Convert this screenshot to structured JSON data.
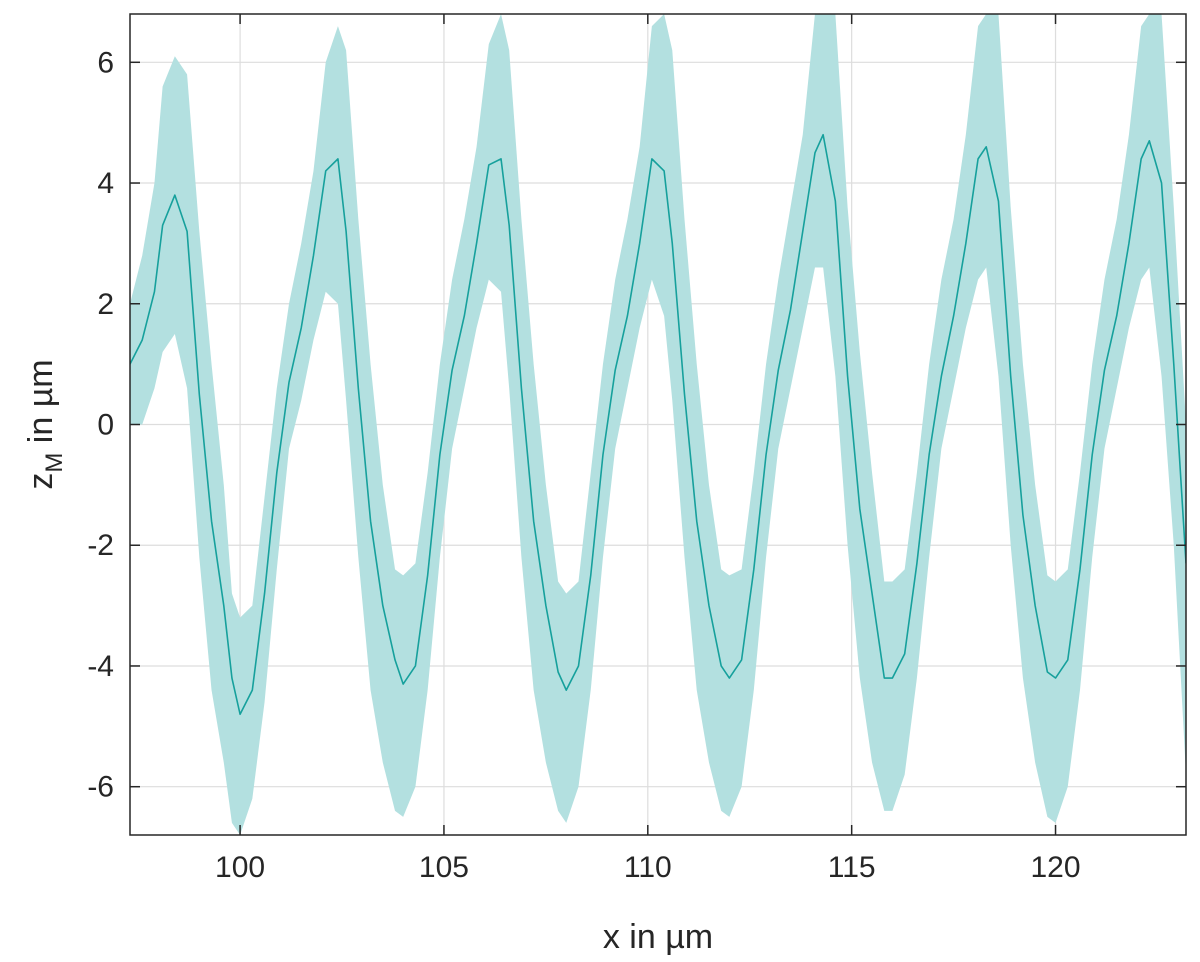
{
  "chart_data": {
    "type": "line",
    "title": "",
    "xlabel": "x in µm",
    "ylabel": {
      "base": "z",
      "subscript": "M",
      "rest": " in µm"
    },
    "xlim": [
      97.3,
      123.2
    ],
    "ylim": [
      -6.8,
      6.8
    ],
    "xticks": [
      100,
      105,
      110,
      115,
      120
    ],
    "yticks": [
      -6,
      -4,
      -2,
      0,
      2,
      4,
      6
    ],
    "grid": true,
    "colors": {
      "line": "#16A09C",
      "band": "#B3E0E0",
      "grid": "#DDDDDD",
      "axis": "#262626"
    },
    "series": [
      {
        "x": [
          97.3,
          97.6,
          97.9,
          98.1,
          98.4,
          98.7,
          99.0,
          99.3,
          99.6,
          99.8,
          100.0,
          100.3,
          100.6,
          100.9,
          101.2,
          101.5,
          101.8,
          102.1,
          102.4,
          102.6,
          102.9,
          103.2,
          103.5,
          103.8,
          104.0,
          104.3,
          104.6,
          104.9,
          105.2,
          105.5,
          105.8,
          106.1,
          106.4,
          106.6,
          106.9,
          107.2,
          107.5,
          107.8,
          108.0,
          108.3,
          108.6,
          108.9,
          109.2,
          109.5,
          109.8,
          110.1,
          110.4,
          110.6,
          110.9,
          111.2,
          111.5,
          111.8,
          112.0,
          112.3,
          112.6,
          112.9,
          113.2,
          113.5,
          113.8,
          114.1,
          114.3,
          114.6,
          114.9,
          115.2,
          115.5,
          115.8,
          116.0,
          116.3,
          116.6,
          116.9,
          117.2,
          117.5,
          117.8,
          118.1,
          118.3,
          118.6,
          118.9,
          119.2,
          119.5,
          119.8,
          120.0,
          120.3,
          120.6,
          120.9,
          121.2,
          121.5,
          121.8,
          122.1,
          122.3,
          122.6,
          122.9,
          123.2
        ],
        "y": [
          1.0,
          1.4,
          2.2,
          3.3,
          3.8,
          3.2,
          0.5,
          -1.6,
          -3.0,
          -4.2,
          -4.8,
          -4.4,
          -2.8,
          -0.8,
          0.7,
          1.6,
          2.8,
          4.2,
          4.4,
          3.2,
          0.6,
          -1.6,
          -3.0,
          -3.9,
          -4.3,
          -4.0,
          -2.5,
          -0.5,
          0.9,
          1.8,
          3.0,
          4.3,
          4.4,
          3.3,
          0.6,
          -1.6,
          -3.0,
          -4.1,
          -4.4,
          -4.0,
          -2.5,
          -0.5,
          0.9,
          1.8,
          3.0,
          4.4,
          4.2,
          3.0,
          0.5,
          -1.6,
          -3.0,
          -4.0,
          -4.2,
          -3.9,
          -2.4,
          -0.5,
          0.9,
          1.9,
          3.2,
          4.5,
          4.8,
          3.7,
          0.8,
          -1.4,
          -2.8,
          -4.2,
          -4.2,
          -3.8,
          -2.3,
          -0.5,
          0.8,
          1.8,
          3.0,
          4.4,
          4.6,
          3.7,
          0.8,
          -1.5,
          -3.0,
          -4.1,
          -4.2,
          -3.9,
          -2.4,
          -0.5,
          0.9,
          1.8,
          3.0,
          4.4,
          4.7,
          4.0,
          1.0,
          -2.3
        ],
        "upper": [
          2.0,
          2.8,
          4.0,
          5.6,
          6.1,
          5.8,
          3.2,
          1.0,
          -1.0,
          -2.8,
          -3.2,
          -3.0,
          -1.2,
          0.6,
          2.0,
          3.0,
          4.2,
          6.0,
          6.6,
          6.2,
          3.4,
          1.0,
          -1.0,
          -2.4,
          -2.5,
          -2.3,
          -0.8,
          1.0,
          2.4,
          3.4,
          4.6,
          6.3,
          6.8,
          6.2,
          3.4,
          1.0,
          -1.0,
          -2.6,
          -2.8,
          -2.6,
          -0.8,
          1.0,
          2.4,
          3.4,
          4.6,
          6.6,
          6.8,
          6.2,
          3.4,
          1.0,
          -1.0,
          -2.4,
          -2.5,
          -2.4,
          -0.8,
          1.0,
          2.4,
          3.6,
          4.8,
          6.8,
          6.8,
          6.8,
          3.6,
          1.2,
          -0.8,
          -2.6,
          -2.6,
          -2.4,
          -0.8,
          1.0,
          2.4,
          3.4,
          4.8,
          6.6,
          6.8,
          6.8,
          3.6,
          1.0,
          -1.0,
          -2.5,
          -2.6,
          -2.4,
          -0.8,
          1.0,
          2.4,
          3.4,
          4.8,
          6.6,
          6.8,
          6.8,
          3.6,
          0.0
        ],
        "lower": [
          0.0,
          0.0,
          0.6,
          1.2,
          1.5,
          0.6,
          -2.2,
          -4.4,
          -5.6,
          -6.6,
          -6.8,
          -6.2,
          -4.6,
          -2.4,
          -0.4,
          0.4,
          1.4,
          2.2,
          2.0,
          0.4,
          -2.2,
          -4.4,
          -5.6,
          -6.4,
          -6.5,
          -6.0,
          -4.4,
          -2.2,
          -0.4,
          0.6,
          1.6,
          2.4,
          2.2,
          0.6,
          -2.2,
          -4.4,
          -5.6,
          -6.4,
          -6.6,
          -6.0,
          -4.4,
          -2.2,
          -0.4,
          0.6,
          1.6,
          2.4,
          1.8,
          0.4,
          -2.2,
          -4.4,
          -5.6,
          -6.4,
          -6.5,
          -6.0,
          -4.4,
          -2.2,
          -0.4,
          0.6,
          1.6,
          2.6,
          2.6,
          0.8,
          -2.0,
          -4.2,
          -5.6,
          -6.4,
          -6.4,
          -5.8,
          -4.2,
          -2.2,
          -0.4,
          0.6,
          1.6,
          2.4,
          2.6,
          0.8,
          -2.0,
          -4.2,
          -5.6,
          -6.5,
          -6.6,
          -6.0,
          -4.4,
          -2.2,
          -0.4,
          0.6,
          1.6,
          2.4,
          2.6,
          0.8,
          -2.0,
          -5.8
        ]
      }
    ]
  }
}
